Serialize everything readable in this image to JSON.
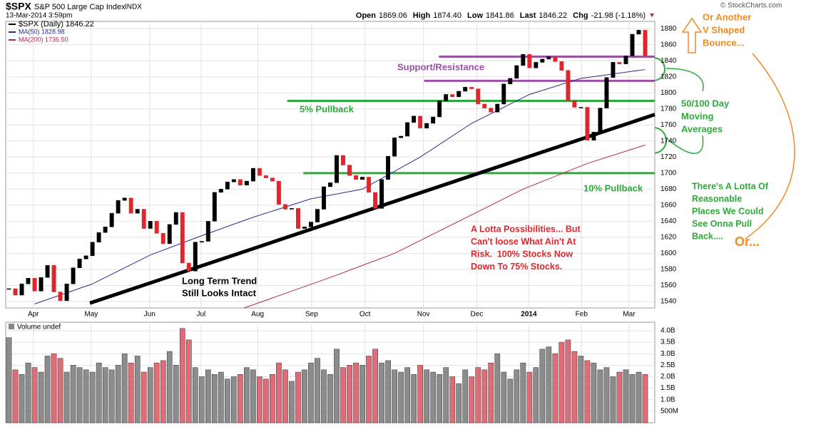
{
  "header": {
    "symbol": "$SPX",
    "name": "S&P 500 Large Cap Index",
    "exchange": "INDX",
    "date": "13-Mar-2014 3:59pm",
    "copyright": "© StockCharts.com",
    "quote": [
      {
        "label": "Open",
        "value": "1869.06"
      },
      {
        "label": "High",
        "value": "1874.40"
      },
      {
        "label": "Low",
        "value": "1841.86"
      },
      {
        "label": "Last",
        "value": "1846.22"
      },
      {
        "label": "Chg",
        "value": "-21.98 (-1.18%)"
      }
    ]
  },
  "chart_data": [
    {
      "type": "candlestick",
      "series": [
        {
          "name": "$SPX (Daily) 1846.22",
          "color": "#000000",
          "down_color": "#e0262c",
          "values": [
            1556,
            1548,
            1562,
            1569,
            1553,
            1570,
            1585,
            1552,
            1541,
            1562,
            1582,
            1593,
            1597,
            1614,
            1626,
            1633,
            1650,
            1666,
            1669,
            1650,
            1655,
            1631,
            1640,
            1625,
            1612,
            1636,
            1651,
            1588,
            1578,
            1614,
            1615,
            1640,
            1676,
            1680,
            1689,
            1692,
            1685,
            1690,
            1706,
            1697,
            1694,
            1690,
            1661,
            1655,
            1656,
            1631,
            1633,
            1639,
            1655,
            1683,
            1688,
            1722,
            1710,
            1697,
            1692,
            1695,
            1676,
            1656,
            1692,
            1721,
            1744,
            1746,
            1763,
            1771,
            1756,
            1762,
            1770,
            1790,
            1798,
            1795,
            1802,
            1807,
            1805,
            1786,
            1781,
            1776,
            1786,
            1811,
            1818,
            1834,
            1848,
            1831,
            1838,
            1842,
            1845,
            1839,
            1828,
            1790,
            1782,
            1782,
            1741,
            1751,
            1781,
            1819,
            1838,
            1836,
            1846,
            1873,
            1878,
            1846
          ]
        },
        {
          "name": "MA(50) 1828.98",
          "color": "#2b2b8c",
          "x": [
            4,
            13,
            22,
            30,
            38,
            47,
            55,
            64,
            72,
            81,
            89,
            99
          ],
          "values": [
            1537,
            1562,
            1598,
            1622,
            1645,
            1668,
            1680,
            1720,
            1762,
            1798,
            1818,
            1829
          ]
        },
        {
          "name": "MA(200) 1736.50",
          "color": "#b0274e",
          "x": [
            36.6,
            50,
            60,
            70,
            80,
            90,
            99
          ],
          "values": [
            1532,
            1570,
            1600,
            1640,
            1680,
            1712,
            1735
          ]
        }
      ],
      "xlim": [
        -0.5,
        100.5
      ],
      "xticks": [
        {
          "value": 3.8,
          "label": "Apr"
        },
        {
          "value": 12.8,
          "label": "May"
        },
        {
          "value": 21.9,
          "label": "Jun"
        },
        {
          "value": 29.9,
          "label": "Jul"
        },
        {
          "value": 38.7,
          "label": "Aug"
        },
        {
          "value": 47.1,
          "label": "Sep"
        },
        {
          "value": 55.4,
          "label": "Oct"
        },
        {
          "value": 64.5,
          "label": "Nov"
        },
        {
          "value": 72.8,
          "label": "Dec"
        },
        {
          "value": 80.9,
          "label": "2014"
        },
        {
          "value": 89.1,
          "label": "Feb"
        },
        {
          "value": 96.5,
          "label": "Mar"
        }
      ],
      "ylim": [
        1532,
        1889
      ],
      "yticks": [
        1540,
        1560,
        1580,
        1600,
        1620,
        1640,
        1660,
        1680,
        1700,
        1720,
        1740,
        1760,
        1780,
        1800,
        1820,
        1840,
        1860,
        1880
      ],
      "grid": true,
      "levels": [
        {
          "value": 1845,
          "from": 66.9,
          "color": "#9b4fa6"
        },
        {
          "value": 1815,
          "from": 64.6,
          "color": "#9b4fa6"
        },
        {
          "value": 1790,
          "from": 43.3,
          "color": "#2eaa3a"
        },
        {
          "value": 1700,
          "from": 45.8,
          "color": "#2eaa3a"
        }
      ],
      "trendline": {
        "x": [
          12.6,
          100.5
        ],
        "values": [
          1538,
          1773
        ],
        "color": "#000000"
      },
      "annotations": [
        {
          "lines": [
            "Support/Resistance"
          ],
          "color": "#9b4fa6"
        },
        {
          "lines": [
            "5% Pullback"
          ],
          "color": "#2eaa3a"
        },
        {
          "lines": [
            "10% Pullback"
          ],
          "color": "#2eaa3a"
        },
        {
          "lines": [
            "Long Term Trend",
            "Still Looks Intact"
          ],
          "color": "#000000"
        },
        {
          "lines": [
            "A Lotta Possibilities... But",
            "Can't loose What Ain't At",
            "Risk.  100% Stocks Now",
            "Down To 75% Stocks."
          ],
          "color": "#e0262c"
        },
        {
          "lines": [
            "50/100 Day",
            "Moving",
            "Averages"
          ],
          "color": "#2eaa3a"
        },
        {
          "lines": [
            "There's A Lotta Of",
            "Reasonable",
            "Places We Could",
            "See Onna Pull",
            "Back...."
          ],
          "color": "#2eaa3a"
        },
        {
          "lines": [
            "Or..."
          ],
          "color": "#f08a24"
        },
        {
          "lines": [
            "Or Another",
            "V Shaped",
            "Bounce..."
          ],
          "color": "#f08a24"
        }
      ]
    },
    {
      "type": "bar",
      "title": "Volume undef",
      "up_color": "#8c8c8c",
      "down_color": "#e06c78",
      "values": [
        3.7,
        2.3,
        2.1,
        2.6,
        2.4,
        2.2,
        2.9,
        3.0,
        2.8,
        2.2,
        2.5,
        2.4,
        2.3,
        2.2,
        2.6,
        2.4,
        2.3,
        2.5,
        3.0,
        2.6,
        2.9,
        2.2,
        2.4,
        2.6,
        2.7,
        3.1,
        2.5,
        4.1,
        3.6,
        2.4,
        2.0,
        2.3,
        2.1,
        2.2,
        1.9,
        2.0,
        2.1,
        2.4,
        2.3,
        2.0,
        1.9,
        2.1,
        2.6,
        2.3,
        1.8,
        2.2,
        2.3,
        2.6,
        2.8,
        2.3,
        2.1,
        3.2,
        2.4,
        2.5,
        2.6,
        2.5,
        2.9,
        3.2,
        2.6,
        2.7,
        2.3,
        2.2,
        2.4,
        2.1,
        2.5,
        2.3,
        2.2,
        2.1,
        2.4,
        2.0,
        1.7,
        2.3,
        2.0,
        2.4,
        2.3,
        2.6,
        3.0,
        2.2,
        1.9,
        2.3,
        2.6,
        2.2,
        2.4,
        3.2,
        3.3,
        3.0,
        3.5,
        3.6,
        3.1,
        2.9,
        2.7,
        2.6,
        2.3,
        2.4,
        2.0,
        2.2,
        2.3,
        2.1,
        2.2,
        2.1
      ],
      "ylim": [
        0,
        4.37
      ],
      "yticks": [
        {
          "value": 0.5,
          "label": "500M"
        },
        {
          "value": 1.0,
          "label": "1.0B"
        },
        {
          "value": 1.5,
          "label": "1.5B"
        },
        {
          "value": 2.0,
          "label": "2.0B"
        },
        {
          "value": 2.5,
          "label": "2.5B"
        },
        {
          "value": 3.0,
          "label": "3.0B"
        },
        {
          "value": 3.5,
          "label": "3.5B"
        },
        {
          "value": 4.0,
          "label": "4.0B"
        }
      ]
    }
  ]
}
